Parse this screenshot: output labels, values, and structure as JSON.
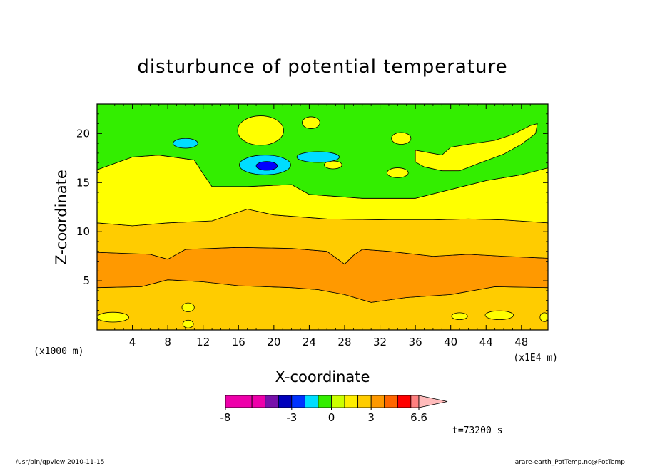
{
  "chart_data": {
    "type": "heatmap",
    "title": "disturbunce of potential temperature",
    "xlabel": "X-coordinate",
    "ylabel": "Z-coordinate",
    "x_unit_left": "(x1000 m)",
    "x_unit_right": "(x1E4 m)",
    "xlim": [
      0,
      51
    ],
    "ylim": [
      0,
      23
    ],
    "x_ticks": [
      "4",
      "8",
      "12",
      "16",
      "20",
      "24",
      "28",
      "32",
      "36",
      "40",
      "44",
      "48"
    ],
    "x_tick_values": [
      4,
      8,
      12,
      16,
      20,
      24,
      28,
      32,
      36,
      40,
      44,
      48
    ],
    "y_ticks": [
      "5",
      "10",
      "15",
      "20"
    ],
    "y_tick_values": [
      5,
      10,
      15,
      20
    ],
    "bands": [
      {
        "level": "lower",
        "color": "#ffcc00",
        "points": [
          [
            0,
            0
          ],
          [
            51,
            0
          ],
          [
            51,
            4.3
          ],
          [
            45,
            4.4
          ],
          [
            40,
            3.6
          ],
          [
            35,
            3.3
          ],
          [
            31,
            2.8
          ],
          [
            28,
            3.6
          ],
          [
            25,
            4.1
          ],
          [
            22,
            4.3
          ],
          [
            16,
            4.5
          ],
          [
            12,
            4.9
          ],
          [
            8,
            5.1
          ],
          [
            5,
            4.4
          ],
          [
            0,
            4.3
          ]
        ]
      },
      {
        "level": "core",
        "color": "#ff9900",
        "points": [
          [
            0,
            4.3
          ],
          [
            5,
            4.4
          ],
          [
            8,
            5.1
          ],
          [
            12,
            4.9
          ],
          [
            16,
            4.5
          ],
          [
            22,
            4.3
          ],
          [
            25,
            4.1
          ],
          [
            28,
            3.6
          ],
          [
            31,
            2.8
          ],
          [
            35,
            3.3
          ],
          [
            40,
            3.6
          ],
          [
            45,
            4.4
          ],
          [
            51,
            4.3
          ],
          [
            51,
            7.3
          ],
          [
            46,
            7.5
          ],
          [
            42,
            7.7
          ],
          [
            38,
            7.5
          ],
          [
            33,
            8.0
          ],
          [
            30,
            8.2
          ],
          [
            29,
            7.6
          ],
          [
            28,
            6.7
          ],
          [
            26,
            8.0
          ],
          [
            22,
            8.3
          ],
          [
            16,
            8.4
          ],
          [
            10,
            8.2
          ],
          [
            8,
            7.2
          ],
          [
            6,
            7.7
          ],
          [
            0,
            7.9
          ]
        ]
      },
      {
        "level": "upper",
        "color": "#ffcc00",
        "points": [
          [
            0,
            7.9
          ],
          [
            6,
            7.7
          ],
          [
            8,
            7.2
          ],
          [
            10,
            8.2
          ],
          [
            16,
            8.4
          ],
          [
            22,
            8.3
          ],
          [
            26,
            8.0
          ],
          [
            28,
            6.7
          ],
          [
            29,
            7.6
          ],
          [
            30,
            8.2
          ],
          [
            33,
            8.0
          ],
          [
            38,
            7.5
          ],
          [
            42,
            7.7
          ],
          [
            46,
            7.5
          ],
          [
            51,
            7.3
          ],
          [
            51,
            10.9
          ],
          [
            46,
            11.2
          ],
          [
            42,
            11.3
          ],
          [
            38,
            11.2
          ],
          [
            33,
            11.2
          ],
          [
            26,
            11.3
          ],
          [
            20,
            11.7
          ],
          [
            17,
            12.3
          ],
          [
            13,
            11.1
          ],
          [
            8,
            10.9
          ],
          [
            4,
            10.6
          ],
          [
            0,
            10.9
          ]
        ]
      },
      {
        "level": "mid",
        "color": "#ffff00",
        "points": [
          [
            0,
            10.9
          ],
          [
            4,
            10.6
          ],
          [
            8,
            10.9
          ],
          [
            13,
            11.1
          ],
          [
            17,
            12.3
          ],
          [
            20,
            11.7
          ],
          [
            26,
            11.3
          ],
          [
            33,
            11.2
          ],
          [
            38,
            11.2
          ],
          [
            42,
            11.3
          ],
          [
            46,
            11.2
          ],
          [
            51,
            10.9
          ],
          [
            51,
            16.5
          ],
          [
            48,
            15.8
          ],
          [
            44,
            15.2
          ],
          [
            40,
            14.3
          ],
          [
            36,
            13.4
          ],
          [
            30,
            13.4
          ],
          [
            24,
            13.8
          ],
          [
            22,
            14.8
          ],
          [
            17,
            14.6
          ],
          [
            13,
            14.6
          ],
          [
            12,
            15.9
          ],
          [
            11,
            17.3
          ],
          [
            7,
            17.8
          ],
          [
            4,
            17.6
          ],
          [
            0,
            16.3
          ]
        ]
      },
      {
        "level": "top",
        "color": "#33ee00",
        "points": [
          [
            0,
            16.3
          ],
          [
            4,
            17.6
          ],
          [
            7,
            17.8
          ],
          [
            11,
            17.3
          ],
          [
            12,
            15.9
          ],
          [
            13,
            14.6
          ],
          [
            17,
            14.6
          ],
          [
            22,
            14.8
          ],
          [
            24,
            13.8
          ],
          [
            30,
            13.4
          ],
          [
            36,
            13.4
          ],
          [
            40,
            14.3
          ],
          [
            44,
            15.2
          ],
          [
            48,
            15.8
          ],
          [
            51,
            16.5
          ],
          [
            51,
            23
          ],
          [
            0,
            23
          ]
        ]
      }
    ],
    "islands": [
      {
        "color": "#ffff00",
        "cx": 1.8,
        "cy": 1.3,
        "rx": 1.8,
        "ry": 0.5
      },
      {
        "color": "#ffff00",
        "cx": 10.3,
        "cy": 2.3,
        "rx": 0.7,
        "ry": 0.45
      },
      {
        "color": "#ffff00",
        "cx": 10.3,
        "cy": 0.6,
        "rx": 0.6,
        "ry": 0.4
      },
      {
        "color": "#ffff00",
        "cx": 41.0,
        "cy": 1.4,
        "rx": 0.9,
        "ry": 0.35
      },
      {
        "color": "#ffff00",
        "cx": 45.5,
        "cy": 1.5,
        "rx": 1.6,
        "ry": 0.45
      },
      {
        "color": "#ffff00",
        "cx": 50.6,
        "cy": 1.3,
        "rx": 0.5,
        "ry": 0.45
      },
      {
        "color": "#ffff00",
        "cx": 18.5,
        "cy": 20.3,
        "rx": 2.6,
        "ry": 1.5
      },
      {
        "color": "#ffff00",
        "cx": 24.2,
        "cy": 21.1,
        "rx": 1.0,
        "ry": 0.6
      },
      {
        "color": "#ffff00",
        "cx": 26.7,
        "cy": 16.8,
        "rx": 1.0,
        "ry": 0.4
      },
      {
        "color": "#ffff00",
        "cx": 34.4,
        "cy": 19.5,
        "rx": 1.1,
        "ry": 0.6
      },
      {
        "color": "#ffff00",
        "cx": 34.0,
        "cy": 16.0,
        "rx": 1.2,
        "ry": 0.5
      },
      {
        "color": "#00ddff",
        "cx": 10.0,
        "cy": 19.0,
        "rx": 1.4,
        "ry": 0.5
      },
      {
        "color": "#00ddff",
        "cx": 19.0,
        "cy": 16.8,
        "rx": 2.9,
        "ry": 1.0
      },
      {
        "color": "#00ddff",
        "cx": 25.0,
        "cy": 17.6,
        "rx": 2.4,
        "ry": 0.55
      },
      {
        "color": "#0000ff",
        "cx": 19.2,
        "cy": 16.7,
        "rx": 1.2,
        "ry": 0.45
      }
    ],
    "ridge": {
      "color": "#ffff00",
      "points": [
        [
          36,
          18.3
        ],
        [
          39,
          17.8
        ],
        [
          40,
          18.6
        ],
        [
          42,
          18.9
        ],
        [
          45,
          19.3
        ],
        [
          47,
          19.9
        ],
        [
          49,
          20.8
        ],
        [
          49.8,
          21.0
        ],
        [
          49.6,
          20.0
        ],
        [
          48,
          18.9
        ],
        [
          46,
          17.9
        ],
        [
          43,
          16.9
        ],
        [
          41,
          16.2
        ],
        [
          39,
          16.2
        ],
        [
          37,
          16.6
        ],
        [
          36,
          17.1
        ]
      ]
    },
    "colorbar": {
      "labels": [
        "-8",
        "-3",
        "0",
        "3",
        "6.6"
      ],
      "label_values": [
        -8,
        -3,
        0,
        3,
        6.6
      ],
      "segments": [
        {
          "from": -8.0,
          "to": -6.0,
          "color": "#ee00aa"
        },
        {
          "from": -6.0,
          "to": -5.0,
          "color": "#ee00aa"
        },
        {
          "from": -5.0,
          "to": -4.0,
          "color": "#7711aa"
        },
        {
          "from": -4.0,
          "to": -3.0,
          "color": "#0000bb"
        },
        {
          "from": -3.0,
          "to": -2.0,
          "color": "#0033ff"
        },
        {
          "from": -2.0,
          "to": -1.0,
          "color": "#00ddff"
        },
        {
          "from": -1.0,
          "to": 0.0,
          "color": "#33ee00"
        },
        {
          "from": 0.0,
          "to": 1.0,
          "color": "#ccff00"
        },
        {
          "from": 1.0,
          "to": 2.0,
          "color": "#ffee00"
        },
        {
          "from": 2.0,
          "to": 3.0,
          "color": "#ffcc00"
        },
        {
          "from": 3.0,
          "to": 4.0,
          "color": "#ff9900"
        },
        {
          "from": 4.0,
          "to": 5.0,
          "color": "#ff6600"
        },
        {
          "from": 5.0,
          "to": 6.0,
          "color": "#ff0000"
        },
        {
          "from": 6.0,
          "to": 6.6,
          "color": "#ff8080"
        }
      ],
      "overflow_color": "#ffbbbb"
    }
  },
  "time_label": "t=73200 s",
  "footer_left": "/usr/bin/gpview   2010-11-15",
  "footer_right": "arare-earth_PotTemp.nc@PotTemp"
}
